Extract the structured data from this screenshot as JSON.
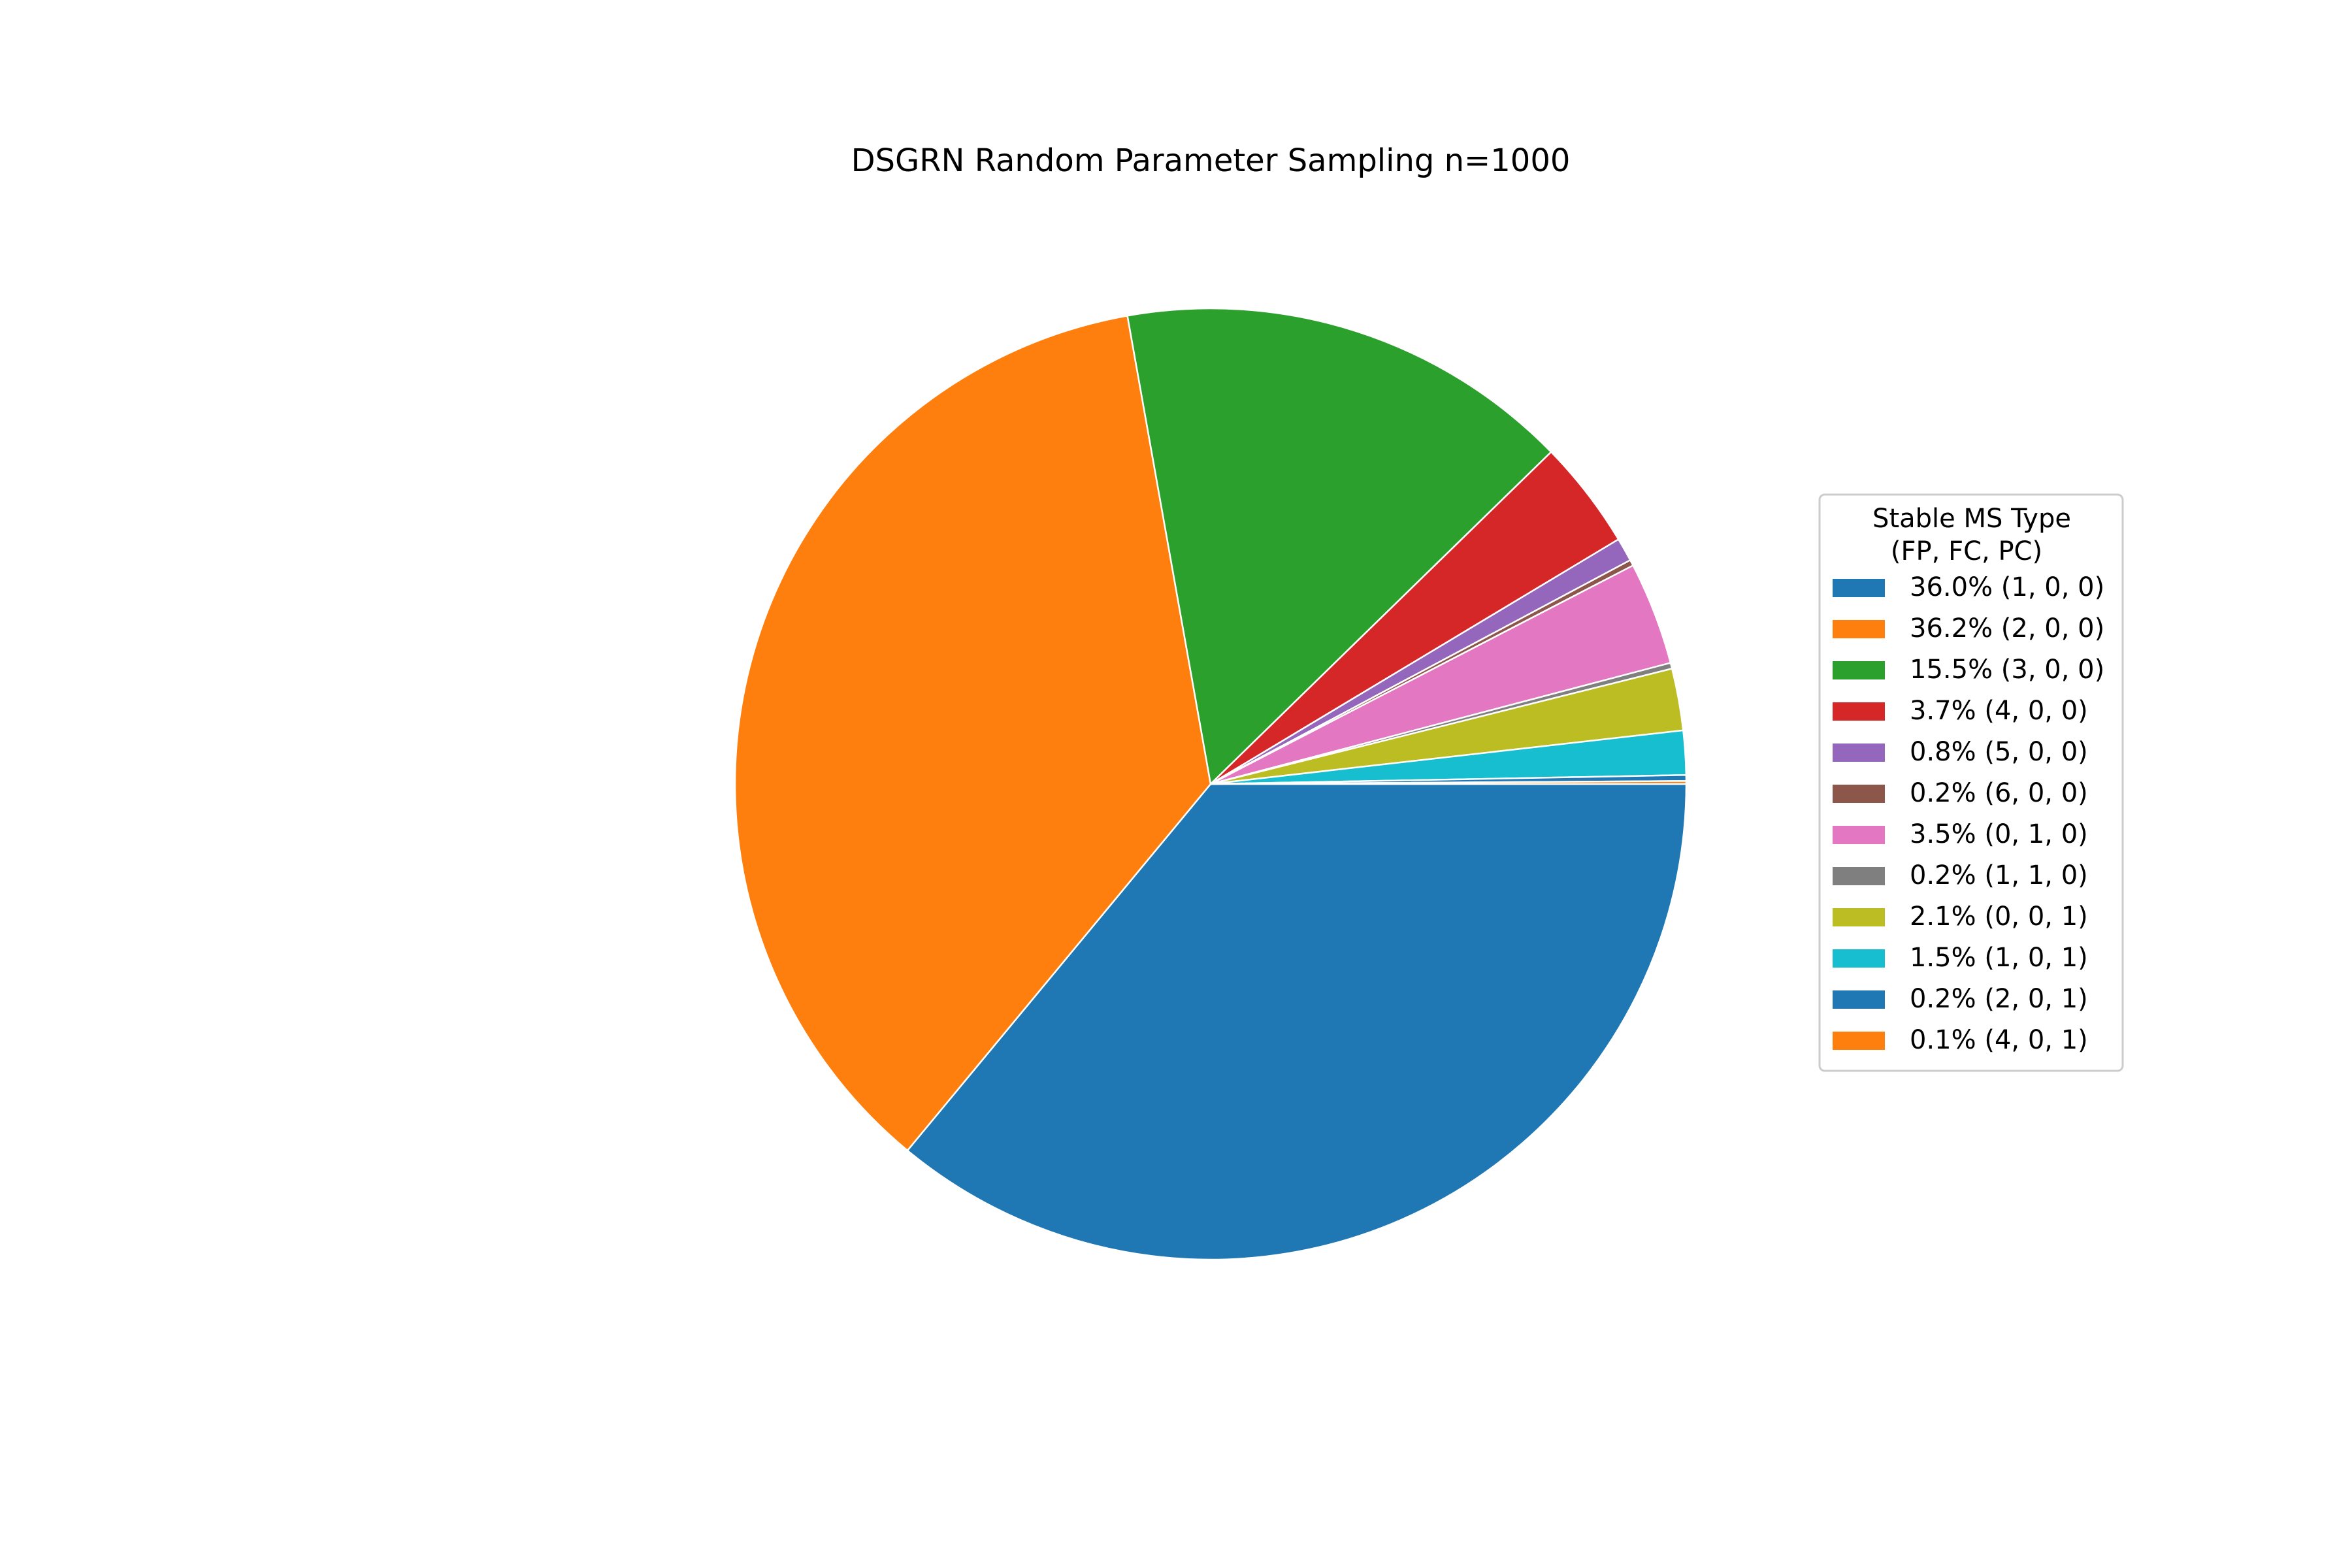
{
  "chart_data": {
    "type": "pie",
    "title": "DSGRN Random Parameter Sampling n=1000",
    "start_angle": 0,
    "direction": "clockwise",
    "slices": [
      {
        "label": "36.0% (1, 0, 0)",
        "value": 36.0,
        "color": "#1f77b4"
      },
      {
        "label": "36.2% (2, 0, 0)",
        "value": 36.2,
        "color": "#ff7f0e"
      },
      {
        "label": "15.5% (3, 0, 0)",
        "value": 15.5,
        "color": "#2ca02c"
      },
      {
        "label": "3.7% (4, 0, 0)",
        "value": 3.7,
        "color": "#d62728"
      },
      {
        "label": "0.8% (5, 0, 0)",
        "value": 0.8,
        "color": "#9467bd"
      },
      {
        "label": "0.2% (6, 0, 0)",
        "value": 0.2,
        "color": "#8c564b"
      },
      {
        "label": "3.5% (0, 1, 0)",
        "value": 3.5,
        "color": "#e377c2"
      },
      {
        "label": "0.2% (1, 1, 0)",
        "value": 0.2,
        "color": "#7f7f7f"
      },
      {
        "label": "2.1% (0, 0, 1)",
        "value": 2.1,
        "color": "#bcbd22"
      },
      {
        "label": "1.5% (1, 0, 1)",
        "value": 1.5,
        "color": "#17becf"
      },
      {
        "label": "0.2% (2, 0, 1)",
        "value": 0.2,
        "color": "#1f77b4"
      },
      {
        "label": "0.1% (4, 0, 1)",
        "value": 0.1,
        "color": "#ff7f0e"
      }
    ],
    "legend": {
      "title_line1": "Stable MS Type",
      "title_line2": "(FP, FC, PC)",
      "placement": "right"
    }
  }
}
